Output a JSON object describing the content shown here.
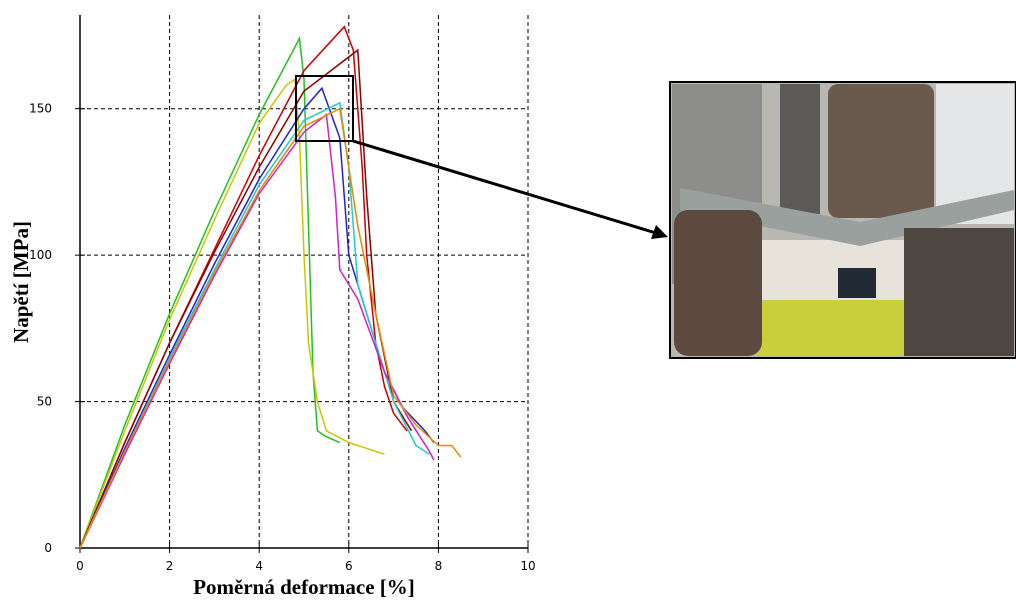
{
  "chart_data": {
    "type": "line",
    "xlabel": "Poměrná deformace [%]",
    "ylabel": "Napětí [MPa]",
    "xlim": [
      0,
      10
    ],
    "xticks": [
      0,
      2,
      4,
      6,
      8,
      10
    ],
    "ylim": [
      0,
      182
    ],
    "yticks": [
      0,
      50,
      100,
      150
    ],
    "grid": true,
    "series": [
      {
        "color": "#22c022",
        "x": [
          0,
          1,
          2,
          3,
          4,
          4.9,
          5.0,
          5.1,
          5.2,
          5.3,
          5.5,
          5.8
        ],
        "values": [
          0,
          42,
          80,
          115,
          148,
          174,
          160,
          110,
          60,
          40,
          38,
          36
        ]
      },
      {
        "color": "#c8c800",
        "x": [
          0,
          1,
          2,
          3,
          4,
          4.6,
          4.8,
          4.9,
          5.0,
          5.1,
          5.3,
          5.5,
          6.0,
          6.8
        ],
        "values": [
          0,
          40,
          78,
          112,
          145,
          158,
          160,
          140,
          100,
          70,
          50,
          40,
          36,
          32
        ]
      },
      {
        "color": "#cc0000",
        "x": [
          0,
          1,
          2,
          3,
          4,
          5,
          5.9,
          6.1,
          6.3,
          6.4,
          6.6,
          6.8,
          7.0,
          7.3
        ],
        "values": [
          0,
          36,
          70,
          102,
          134,
          163,
          178,
          170,
          130,
          100,
          70,
          55,
          46,
          40
        ]
      },
      {
        "color": "#8b0000",
        "x": [
          0,
          1,
          2,
          3,
          4,
          5,
          6.2,
          6.4,
          6.6,
          7.0,
          7.4
        ],
        "values": [
          0,
          36,
          70,
          101,
          130,
          156,
          170,
          120,
          80,
          50,
          40
        ]
      },
      {
        "color": "#2222cc",
        "x": [
          0,
          1,
          2,
          3,
          4,
          5,
          5.4,
          5.8,
          6.0,
          6.4,
          6.8,
          7.2,
          7.7,
          7.9
        ],
        "values": [
          0,
          34,
          66,
          97,
          126,
          150,
          157,
          140,
          100,
          80,
          60,
          48,
          40,
          36
        ]
      },
      {
        "color": "#22cccc",
        "x": [
          0,
          1,
          2,
          3,
          4,
          5,
          5.8,
          6.0,
          6.2,
          6.6,
          7.0,
          7.5,
          7.8
        ],
        "values": [
          0,
          33,
          65,
          95,
          124,
          146,
          152,
          130,
          90,
          70,
          50,
          35,
          32
        ]
      },
      {
        "color": "#cc22cc",
        "x": [
          0,
          1,
          2,
          3,
          4,
          5,
          5.5,
          5.7,
          5.8,
          6.2,
          6.8,
          7.3,
          7.8,
          7.9
        ],
        "values": [
          0,
          32,
          63,
          93,
          121,
          142,
          148,
          120,
          95,
          85,
          60,
          45,
          33,
          30
        ]
      },
      {
        "color": "#e88a00",
        "x": [
          0,
          1,
          2,
          3,
          4,
          5,
          5.8,
          6.0,
          6.2,
          6.6,
          7.0,
          7.5,
          8.0,
          8.3,
          8.5
        ],
        "values": [
          0,
          33,
          64,
          94,
          122,
          144,
          150,
          130,
          110,
          80,
          52,
          42,
          35,
          35,
          31
        ]
      }
    ]
  }
}
